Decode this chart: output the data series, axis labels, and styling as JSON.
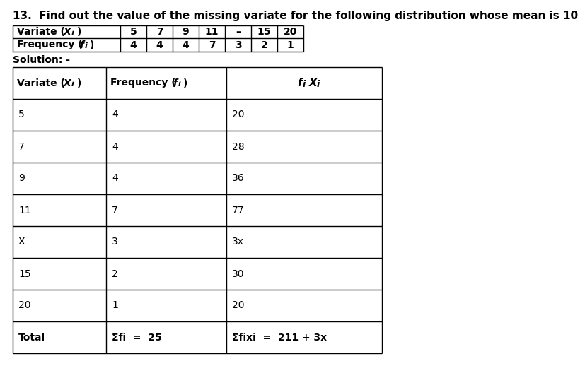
{
  "title": "13.  Find out the value of the missing variate for the following distribution whose mean is 10",
  "bg_color": "#ffffff",
  "text_color": "#000000",
  "top_table": {
    "row1_label": "Variate (X",
    "row1_label2": "i",
    "row1_label3": ")",
    "row1_vals": [
      "5",
      "7",
      "9",
      "11",
      "–",
      "15",
      "20"
    ],
    "row2_label": "Frequency (",
    "row2_label2": "f",
    "row2_label3": "i",
    "row2_label4": ")",
    "row2_vals": [
      "4",
      "4",
      "4",
      "7",
      "3",
      "2",
      "1"
    ]
  },
  "solution_label": "Solution: -",
  "main_table": {
    "col1_header": "Variate (X",
    "col2_header": "Frequency (",
    "col3_header": "f",
    "rows": [
      [
        "5",
        "4",
        "20"
      ],
      [
        "7",
        "4",
        "28"
      ],
      [
        "9",
        "4",
        "36"
      ],
      [
        "11",
        "7",
        "77"
      ],
      [
        "X",
        "3",
        "3x"
      ],
      [
        "15",
        "2",
        "30"
      ],
      [
        "20",
        "1",
        "20"
      ],
      [
        "Total",
        "Σfi  =  25",
        "Σfixi  =  211 + 3x"
      ]
    ]
  }
}
